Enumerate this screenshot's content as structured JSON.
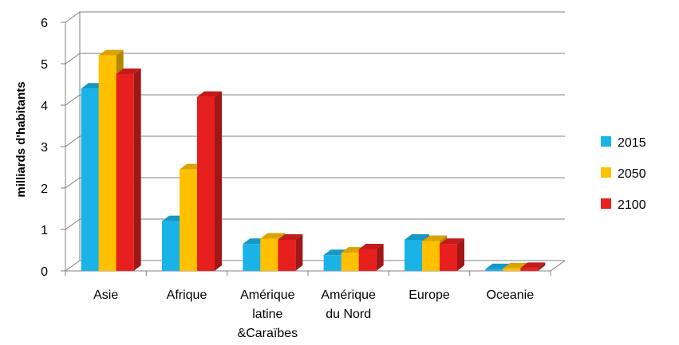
{
  "chart_data": {
    "type": "bar",
    "style": "3d-clustered-column",
    "ylabel": "milliards d'habitants",
    "xlabel": "",
    "ylim": [
      0,
      6
    ],
    "yticks": [
      "0",
      "1",
      "2",
      "3",
      "4",
      "5",
      "6"
    ],
    "grid": true,
    "legend_position": "right",
    "categories": [
      [
        "Asie"
      ],
      [
        "Afrique"
      ],
      [
        "Amérique",
        "latine",
        "&Caraïbes"
      ],
      [
        "Amérique",
        "du Nord"
      ],
      [
        "Europe"
      ],
      [
        "Oceanie"
      ]
    ],
    "series": [
      {
        "name": "2015",
        "color": "#19b3e8",
        "values": [
          4.4,
          1.2,
          0.65,
          0.38,
          0.75,
          0.04
        ]
      },
      {
        "name": "2050",
        "color": "#ffc000",
        "values": [
          5.2,
          2.45,
          0.78,
          0.44,
          0.72,
          0.06
        ]
      },
      {
        "name": "2100",
        "color": "#e81f1f",
        "values": [
          4.75,
          4.2,
          0.75,
          0.52,
          0.65,
          0.07
        ]
      }
    ]
  }
}
